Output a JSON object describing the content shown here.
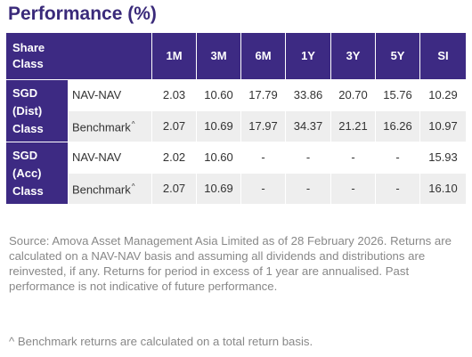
{
  "title": "Performance (%)",
  "table": {
    "headers": {
      "share_class_line1": "Share",
      "share_class_line2": "Class",
      "periods": [
        "1M",
        "3M",
        "6M",
        "1Y",
        "3Y",
        "5Y",
        "SI"
      ]
    },
    "groups": [
      {
        "name_lines": [
          "SGD",
          "(Dist)",
          "Class"
        ],
        "rows": [
          {
            "type": "NAV-NAV",
            "caret": "",
            "values": [
              "2.03",
              "10.60",
              "17.79",
              "33.86",
              "20.70",
              "15.76",
              "10.29"
            ]
          },
          {
            "type": "Benchmark",
            "caret": "^",
            "values": [
              "2.07",
              "10.69",
              "17.97",
              "34.37",
              "21.21",
              "16.26",
              "10.97"
            ]
          }
        ]
      },
      {
        "name_lines": [
          "SGD",
          "(Acc)",
          "Class"
        ],
        "rows": [
          {
            "type": "NAV-NAV",
            "caret": "",
            "values": [
              "2.02",
              "10.60",
              "-",
              "-",
              "-",
              "-",
              "15.93"
            ]
          },
          {
            "type": "Benchmark",
            "caret": "^",
            "values": [
              "2.07",
              "10.69",
              "-",
              "-",
              "-",
              "-",
              "16.10"
            ]
          }
        ]
      }
    ]
  },
  "source_text": "Source: Amova Asset Management Asia Limited as of 28 February 2026. Returns are calculated on a NAV-NAV basis and assuming all dividends and distributions are reinvested, if any. Returns for period in excess of 1 year are annualised. Past performance is not indicative of future performance.",
  "footnote_text": "^ Benchmark returns are calculated on a total return basis.",
  "colors": {
    "title": "#3a2a7a",
    "header_bg": "#3d2a83",
    "row_alt_bg": "#eeeeee",
    "note_text": "#888888"
  }
}
